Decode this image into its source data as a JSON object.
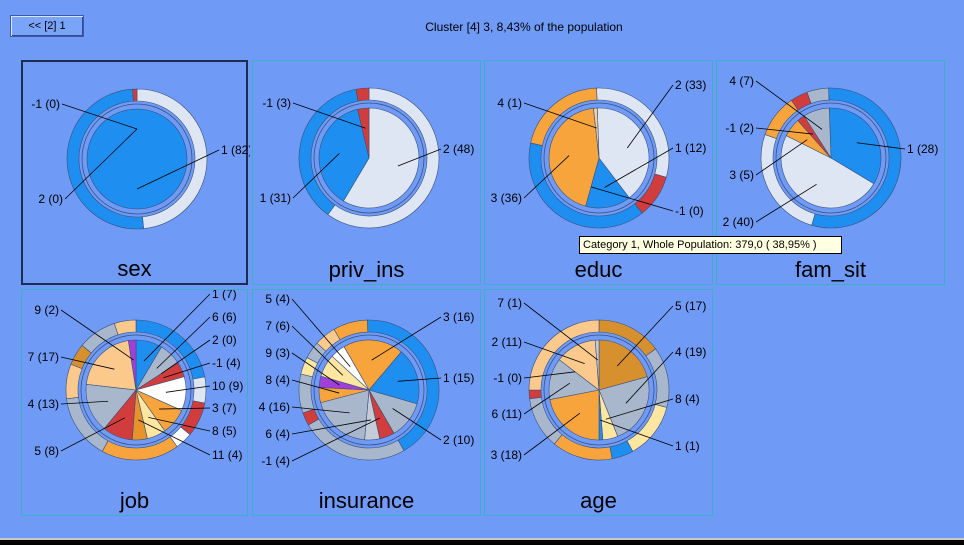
{
  "header": {
    "back_label": "<< [2] 1",
    "title": "Cluster [4] 3, 8,43% of the population"
  },
  "tooltip": "Category 1, Whole Population: 379,0 ( 38,95% )",
  "colors": {
    "background": "#6f9bf7",
    "blue": "#1e8ef0",
    "light": "#dde6f2",
    "red": "#d13d3d",
    "orange": "#f7a43c",
    "gray": "#a9b7cc"
  },
  "chart_data": [
    {
      "type": "pie",
      "title": "sex",
      "inner": [
        {
          "label": "1 (82)",
          "value": 82,
          "color": "#1e8ef0"
        },
        {
          "label": "2 (0)",
          "value": 0,
          "color": "#dde6f2"
        },
        {
          "label": "-1 (0)",
          "value": 0,
          "color": "#d13d3d"
        }
      ],
      "outer": [
        {
          "value": 48.5,
          "color": "#dde6f2"
        },
        {
          "value": 50.5,
          "color": "#1e8ef0"
        },
        {
          "value": 1,
          "color": "#d13d3d"
        }
      ]
    },
    {
      "type": "pie",
      "title": "priv_ins",
      "inner": [
        {
          "label": "2 (48)",
          "value": 48,
          "color": "#dde6f2"
        },
        {
          "label": "1 (31)",
          "value": 31,
          "color": "#1e8ef0"
        },
        {
          "label": "-1 (3)",
          "value": 3,
          "color": "#d13d3d"
        }
      ],
      "outer": [
        {
          "value": 60,
          "color": "#dde6f2"
        },
        {
          "value": 37,
          "color": "#1e8ef0"
        },
        {
          "value": 3,
          "color": "#d13d3d"
        }
      ]
    },
    {
      "type": "pie",
      "title": "educ",
      "inner": [
        {
          "label": "2 (33)",
          "value": 33,
          "color": "#dde6f2"
        },
        {
          "label": "1 (12)",
          "value": 12,
          "color": "#1e8ef0"
        },
        {
          "label": "-1 (0)",
          "value": 0,
          "color": "#d13d3d"
        },
        {
          "label": "3 (36)",
          "value": 36,
          "color": "#f7a43c"
        },
        {
          "label": "4 (1)",
          "value": 1,
          "color": "#f0d0a0"
        }
      ],
      "outer": [
        {
          "value": 30,
          "color": "#dde6f2"
        },
        {
          "value": 10,
          "color": "#d13d3d"
        },
        {
          "value": 39,
          "color": "#1e8ef0"
        },
        {
          "value": 21,
          "color": "#f7a43c"
        }
      ]
    },
    {
      "type": "pie",
      "title": "fam_sit",
      "inner": [
        {
          "label": "1 (28)",
          "value": 28,
          "color": "#1e8ef0"
        },
        {
          "label": "2 (40)",
          "value": 40,
          "color": "#dde6f2"
        },
        {
          "label": "3 (5)",
          "value": 5,
          "color": "#f7a43c"
        },
        {
          "label": "-1 (2)",
          "value": 2,
          "color": "#d13d3d"
        },
        {
          "label": "4 (7)",
          "value": 7,
          "color": "#a9b7cc"
        }
      ],
      "outer": [
        {
          "value": 55,
          "color": "#1e8ef0"
        },
        {
          "value": 26,
          "color": "#dde6f2"
        },
        {
          "value": 10,
          "color": "#f7a43c"
        },
        {
          "value": 4,
          "color": "#d13d3d"
        },
        {
          "value": 5,
          "color": "#a9b7cc"
        }
      ]
    },
    {
      "type": "pie",
      "title": "job",
      "inner": [
        {
          "label": "1 (7)",
          "value": 7,
          "color": "#1e8ef0"
        },
        {
          "label": "6 (6)",
          "value": 6,
          "color": "#a9b7cc"
        },
        {
          "label": "2 (0)",
          "value": 0,
          "color": "#dde6f2"
        },
        {
          "label": "-1 (4)",
          "value": 4,
          "color": "#d13d3d"
        },
        {
          "label": "10 (9)",
          "value": 9,
          "color": "#ffffff"
        },
        {
          "label": "3 (7)",
          "value": 7,
          "color": "#f7a43c"
        },
        {
          "label": "8 (5)",
          "value": 5,
          "color": "#fde6a0"
        },
        {
          "label": "11 (4)",
          "value": 4,
          "color": "#e8922c"
        },
        {
          "label": "5 (8)",
          "value": 8,
          "color": "#d13d3d"
        },
        {
          "label": "4 (13)",
          "value": 13,
          "color": "#a9b7cc"
        },
        {
          "label": "7 (17)",
          "value": 17,
          "color": "#fbc98c"
        },
        {
          "label": "9 (2)",
          "value": 2,
          "color": "#a040d8"
        }
      ],
      "outer": [
        {
          "value": 22,
          "color": "#1e8ef0"
        },
        {
          "value": 6,
          "color": "#dde6f2"
        },
        {
          "value": 8,
          "color": "#d13d3d"
        },
        {
          "value": 4,
          "color": "#ffffff"
        },
        {
          "value": 18,
          "color": "#f7a43c"
        },
        {
          "value": 15,
          "color": "#a9b7cc"
        },
        {
          "value": 8,
          "color": "#fbc98c"
        },
        {
          "value": 5,
          "color": "#d7902e"
        },
        {
          "value": 9,
          "color": "#a9b7cc"
        },
        {
          "value": 5,
          "color": "#fbc98c"
        }
      ]
    },
    {
      "type": "pie",
      "title": "insurance",
      "inner": [
        {
          "label": "3 (16)",
          "value": 16,
          "color": "#f7a43c"
        },
        {
          "label": "1 (15)",
          "value": 15,
          "color": "#1e8ef0"
        },
        {
          "label": "2 (10)",
          "value": 10,
          "color": "#a9b7cc"
        },
        {
          "label": "-1 (4)",
          "value": 4,
          "color": "#d13d3d"
        },
        {
          "label": "6 (4)",
          "value": 4,
          "color": "#c4ccd8"
        },
        {
          "label": "4 (16)",
          "value": 16,
          "color": "#a9b7cc"
        },
        {
          "label": "8 (4)",
          "value": 4,
          "color": "#f7a43c"
        },
        {
          "label": "9 (3)",
          "value": 3,
          "color": "#a040d8"
        },
        {
          "label": "7 (6)",
          "value": 6,
          "color": "#fde6a0"
        },
        {
          "label": "5 (4)",
          "value": 4,
          "color": "#ffffff"
        }
      ],
      "outer": [
        {
          "value": 8,
          "color": "#f7a43c"
        },
        {
          "value": 42,
          "color": "#1e8ef0"
        },
        {
          "value": 25,
          "color": "#a9b7cc"
        },
        {
          "value": 3,
          "color": "#d13d3d"
        },
        {
          "value": 9,
          "color": "#a9b7cc"
        },
        {
          "value": 4,
          "color": "#fde6a0"
        },
        {
          "value": 4,
          "color": "#a9b7cc"
        },
        {
          "value": 5,
          "color": "#fbc98c"
        }
      ]
    },
    {
      "type": "pie",
      "title": "age",
      "inner": [
        {
          "label": "5 (17)",
          "value": 17,
          "color": "#d7902e"
        },
        {
          "label": "4 (19)",
          "value": 19,
          "color": "#a9b7cc"
        },
        {
          "label": "8 (4)",
          "value": 4,
          "color": "#fde6a0"
        },
        {
          "label": "1 (1)",
          "value": 1,
          "color": "#1e8ef0"
        },
        {
          "label": "3 (18)",
          "value": 18,
          "color": "#f7a43c"
        },
        {
          "label": "6 (11)",
          "value": 11,
          "color": "#a9b7cc"
        },
        {
          "label": "-1 (0)",
          "value": 0,
          "color": "#d13d3d"
        },
        {
          "label": "2 (11)",
          "value": 11,
          "color": "#fbc98c"
        },
        {
          "label": "7 (1)",
          "value": 1,
          "color": "#c4ccd8"
        }
      ],
      "outer": [
        {
          "value": 15,
          "color": "#d7902e"
        },
        {
          "value": 14,
          "color": "#a9b7cc"
        },
        {
          "value": 13,
          "color": "#fde6a0"
        },
        {
          "value": 5,
          "color": "#1e8ef0"
        },
        {
          "value": 14,
          "color": "#f7a43c"
        },
        {
          "value": 12,
          "color": "#a9b7cc"
        },
        {
          "value": 2,
          "color": "#d13d3d"
        },
        {
          "value": 25,
          "color": "#fbc98c"
        }
      ]
    }
  ]
}
